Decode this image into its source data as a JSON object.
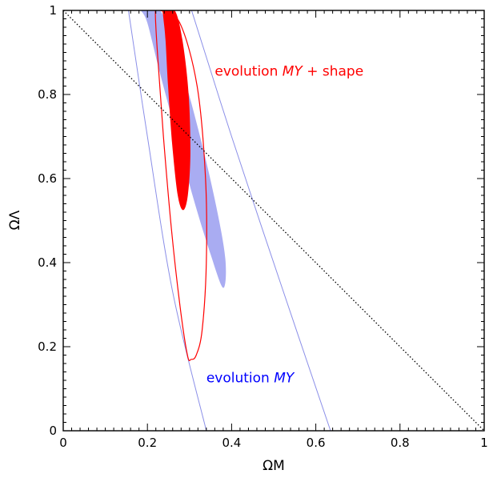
{
  "chart_data": {
    "type": "contour",
    "xlabel": "ΩM",
    "ylabel": "ΩΛ",
    "xlim": [
      0,
      1
    ],
    "ylim": [
      0,
      1
    ],
    "x_ticks": [
      0,
      0.2,
      0.4,
      0.6,
      0.8,
      1
    ],
    "y_ticks": [
      0,
      0.2,
      0.4,
      0.6,
      0.8,
      1
    ],
    "x_tick_labels": [
      "0",
      "0.2",
      "0.4",
      "0.6",
      "0.8",
      "1"
    ],
    "y_tick_labels": [
      "0",
      "0.2",
      "0.4",
      "0.6",
      "0.8",
      "1"
    ],
    "grid": false,
    "flat_universe_line": {
      "x": [
        0,
        1
      ],
      "y": [
        1,
        0
      ]
    },
    "series": [
      {
        "name": "evolution MY",
        "color": "#8b8fe8",
        "filled_region": {
          "x": [
            0.195,
            0.23,
            0.27,
            0.32,
            0.36,
            0.385,
            0.38,
            0.35,
            0.31,
            0.27,
            0.23,
            0.2,
            0.185
          ],
          "y": [
            1.0,
            1.0,
            0.9,
            0.72,
            0.55,
            0.41,
            0.34,
            0.42,
            0.55,
            0.7,
            0.85,
            0.97,
            1.0
          ]
        },
        "outer_contour_left": {
          "x": [
            0.155,
            0.2,
            0.26,
            0.34
          ],
          "y": [
            1.0,
            0.7,
            0.33,
            0.0
          ]
        },
        "outer_contour_right": {
          "x": [
            0.305,
            0.4,
            0.52,
            0.635
          ],
          "y": [
            1.0,
            0.7,
            0.34,
            0.0
          ]
        }
      },
      {
        "name": "evolution MY + shape",
        "color": "#ff0000",
        "filled_region": {
          "x": [
            0.24,
            0.265,
            0.283,
            0.298,
            0.302,
            0.296,
            0.285,
            0.272,
            0.259,
            0.249,
            0.243,
            0.238,
            0.236,
            0.24
          ],
          "y": [
            1.0,
            1.0,
            0.93,
            0.8,
            0.66,
            0.56,
            0.525,
            0.56,
            0.68,
            0.82,
            0.93,
            0.98,
            1.0,
            1.0
          ]
        },
        "contour": {
          "x": [
            0.231,
            0.277,
            0.318,
            0.338,
            0.34,
            0.33,
            0.316,
            0.304,
            0.295,
            0.277,
            0.257,
            0.238,
            0.225,
            0.219
          ],
          "y": [
            1.0,
            0.97,
            0.82,
            0.6,
            0.4,
            0.24,
            0.18,
            0.17,
            0.18,
            0.3,
            0.48,
            0.7,
            0.88,
            1.0
          ]
        }
      }
    ],
    "annotations": [
      {
        "text": "evolution",
        "subscript_text": "MY",
        "suffix": " + shape",
        "color": "#ff0000",
        "x": 0.36,
        "y": 0.845
      },
      {
        "text": "evolution",
        "subscript_text": "MY",
        "suffix": "",
        "color": "#0000ff",
        "x": 0.34,
        "y": 0.115
      }
    ]
  }
}
